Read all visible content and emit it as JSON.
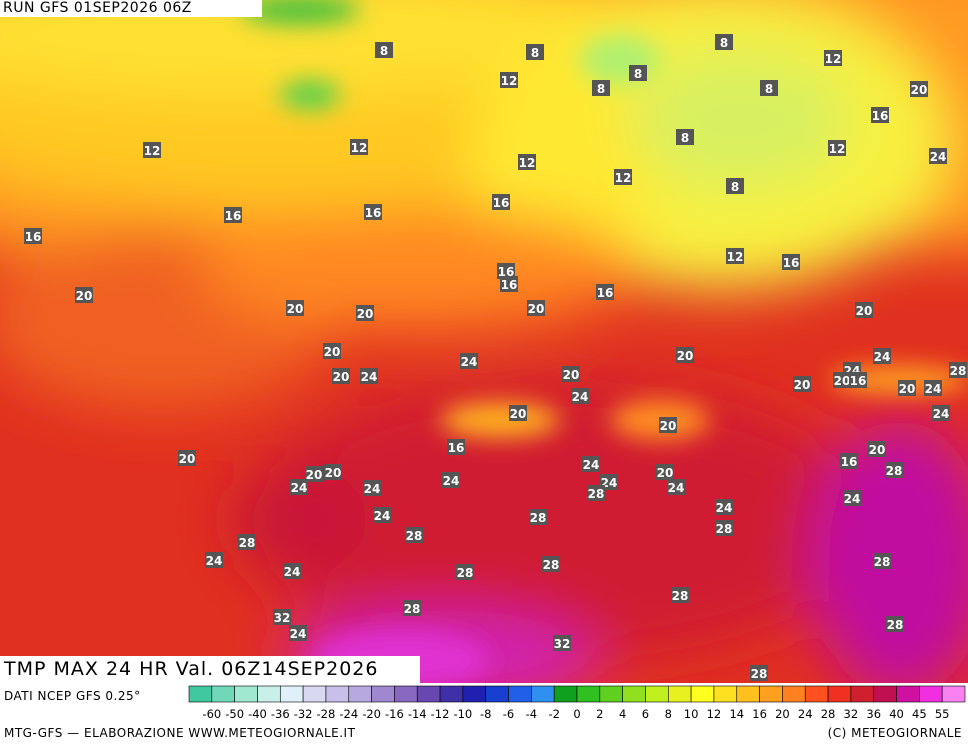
{
  "header": {
    "run": "RUN GFS 01SEP2026 06Z"
  },
  "title": "TMP MAX 24 HR Val. 06Z14SEP2026",
  "map": {
    "contour_labels": [
      8,
      8,
      12,
      8,
      8,
      8,
      8,
      12,
      20,
      16,
      8,
      12,
      24,
      12,
      12,
      12,
      12,
      8,
      16,
      16,
      16,
      16,
      12,
      16,
      16,
      16,
      16,
      20,
      20,
      20,
      20,
      20,
      20,
      24,
      20,
      24,
      20,
      24,
      20,
      24,
      20,
      16,
      28,
      20,
      20,
      24,
      24,
      20,
      24,
      20,
      16,
      20,
      20,
      16,
      24,
      20,
      20,
      20,
      28,
      24,
      24,
      24,
      24,
      24,
      28,
      24,
      24,
      28,
      24,
      28,
      28,
      28,
      24,
      28,
      24,
      28,
      28,
      28,
      28,
      32,
      24,
      28,
      32,
      28,
      28
    ]
  },
  "legend": {
    "source": "DATI NCEP GFS 0.25°",
    "labels": [
      -60,
      -50,
      -40,
      -36,
      -32,
      -28,
      -24,
      -20,
      -16,
      -14,
      -12,
      -10,
      -8,
      -6,
      -4,
      -2,
      0,
      2,
      4,
      6,
      8,
      10,
      12,
      14,
      16,
      20,
      24,
      28,
      32,
      36,
      40,
      45,
      55
    ],
    "colors": [
      "#40c8a0",
      "#70d8b8",
      "#a0e8d0",
      "#c8f0e8",
      "#e0f0f8",
      "#d8d8f0",
      "#c8c0e8",
      "#b8a8e0",
      "#a088d0",
      "#8868c0",
      "#6848b0",
      "#4030a8",
      "#2020b0",
      "#1840d0",
      "#2060e8",
      "#3090f0",
      "#10a020",
      "#30c020",
      "#60d020",
      "#90e020",
      "#c0f020",
      "#e8f020",
      "#ffff20",
      "#ffe020",
      "#ffc020",
      "#ffa020",
      "#ff8020",
      "#ff5020",
      "#f03020",
      "#d02030",
      "#c01050",
      "#d010a0",
      "#f030e0",
      "#f880f0"
    ]
  },
  "footer": {
    "left": "MTG-GFS — ELABORAZIONE WWW.METEOGIORNALE.IT",
    "right": "(C) METEOGIORNALE"
  }
}
